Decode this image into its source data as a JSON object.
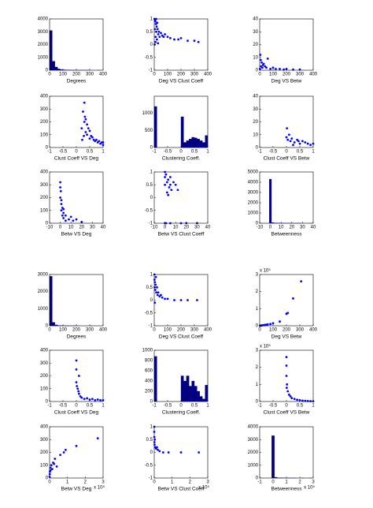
{
  "chart_data": [
    {
      "type": "histogram",
      "xlabel": "Degrees",
      "color": "#000080",
      "xlim": [
        0,
        400
      ],
      "xticks": [
        0,
        100,
        200,
        300,
        400
      ],
      "ylim": [
        0,
        4000
      ],
      "yticks": [
        0,
        1000,
        2000,
        3000,
        4000
      ],
      "bins": [
        0,
        20,
        40,
        60,
        80,
        100,
        120,
        140,
        160,
        180,
        200,
        220,
        240,
        260,
        280,
        300,
        320,
        340,
        360,
        380,
        400
      ],
      "values": [
        3100,
        700,
        250,
        100,
        50,
        30,
        20,
        10,
        5,
        5,
        3,
        2,
        2,
        1,
        1,
        0,
        0,
        0,
        1,
        0
      ]
    },
    {
      "type": "scatter",
      "xlabel": "Deg VS Clust Coeff",
      "color": "#0000ff",
      "xlim": [
        0,
        400
      ],
      "xticks": [
        0,
        100,
        200,
        300,
        400
      ],
      "ylim": [
        -1,
        1
      ],
      "yticks": [
        -1,
        -0.5,
        0,
        0.5,
        1
      ],
      "x": [
        2,
        3,
        5,
        8,
        10,
        12,
        15,
        18,
        20,
        25,
        30,
        35,
        40,
        50,
        60,
        70,
        80,
        100,
        120,
        150,
        180,
        200,
        250,
        300,
        330,
        6,
        9,
        14,
        22,
        28
      ],
      "values": [
        1,
        0,
        0.6,
        0.9,
        0.3,
        0.8,
        0.5,
        0.7,
        0.2,
        0.6,
        0.4,
        0.5,
        0.3,
        0.45,
        0.35,
        0.3,
        0.4,
        0.3,
        0.25,
        0.2,
        0.2,
        0.25,
        0.15,
        0.15,
        0.1,
        0.95,
        0.1,
        1,
        0.85,
        0.05
      ]
    },
    {
      "type": "scatter",
      "xlabel": "Deg VS Betw",
      "color": "#0000ff",
      "xlim": [
        0,
        400
      ],
      "xticks": [
        0,
        100,
        200,
        300,
        400
      ],
      "ylim": [
        0,
        40
      ],
      "yticks": [
        0,
        10,
        20,
        30,
        40
      ],
      "x": [
        2,
        5,
        8,
        10,
        15,
        20,
        25,
        30,
        40,
        50,
        60,
        80,
        100,
        120,
        150,
        180,
        200,
        250,
        300
      ],
      "values": [
        1,
        12,
        8,
        3,
        6,
        2,
        4,
        5,
        3,
        2,
        9,
        1,
        2,
        1,
        1,
        0.5,
        1,
        0.5,
        0.5
      ]
    },
    {
      "type": "scatter",
      "xlabel": "Clust Coeff VS Deg",
      "color": "#0000ff",
      "xlim": [
        -1,
        1
      ],
      "xticks": [
        -1,
        -0.5,
        0,
        0.5,
        1
      ],
      "ylim": [
        0,
        400
      ],
      "yticks": [
        0,
        100,
        200,
        300,
        400
      ],
      "x": [
        0.2,
        0.25,
        0.3,
        0.3,
        0.32,
        0.35,
        0.35,
        0.4,
        0.4,
        0.45,
        0.5,
        0.5,
        0.55,
        0.6,
        0.65,
        0.7,
        0.75,
        0.8,
        0.85,
        0.9,
        0.95,
        1,
        1,
        0.22,
        0.28
      ],
      "values": [
        150,
        280,
        350,
        200,
        240,
        220,
        120,
        180,
        100,
        150,
        130,
        70,
        90,
        80,
        60,
        50,
        60,
        40,
        50,
        30,
        40,
        20,
        40,
        60,
        90
      ]
    },
    {
      "type": "histogram",
      "xlabel": "Clustering Coeff.",
      "color": "#000080",
      "xlim": [
        -1,
        1
      ],
      "xticks": [
        -1,
        -0.5,
        0,
        0.5,
        1
      ],
      "ylim": [
        0,
        1500
      ],
      "yticks": [
        0,
        500,
        1000
      ],
      "bins": [
        -1,
        -0.9,
        -0.8,
        -0.7,
        -0.6,
        -0.5,
        -0.4,
        -0.3,
        -0.2,
        -0.1,
        0,
        0.1,
        0.2,
        0.3,
        0.4,
        0.5,
        0.6,
        0.7,
        0.8,
        0.9,
        1
      ],
      "values": [
        1200,
        0,
        0,
        0,
        0,
        0,
        0,
        0,
        0,
        0,
        900,
        150,
        200,
        250,
        300,
        280,
        250,
        200,
        150,
        350
      ]
    },
    {
      "type": "scatter",
      "xlabel": "Clust Coeff VS Betw",
      "color": "#0000ff",
      "xlim": [
        -1,
        1
      ],
      "xticks": [
        -1,
        -0.5,
        0,
        0.5,
        1
      ],
      "ylim": [
        0,
        40
      ],
      "yticks": [
        0,
        10,
        20,
        30,
        40
      ],
      "x": [
        0,
        0.05,
        0.1,
        0.15,
        0.2,
        0.3,
        0.4,
        0.5,
        0.6,
        0.7,
        0.8,
        0.9,
        1,
        0.02,
        0.25,
        0.45
      ],
      "values": [
        8,
        6,
        10,
        5,
        7,
        4,
        6,
        3,
        5,
        4,
        3,
        2,
        3,
        15,
        2,
        5
      ]
    },
    {
      "type": "scatter",
      "xlabel": "Betw VS Deg",
      "color": "#0000ff",
      "xlim": [
        -10,
        40
      ],
      "xticks": [
        -10,
        0,
        10,
        20,
        30,
        40
      ],
      "ylim": [
        0,
        400
      ],
      "yticks": [
        0,
        100,
        200,
        300,
        400
      ],
      "x": [
        0,
        0,
        0,
        0.5,
        1,
        1,
        2,
        2,
        3,
        3,
        5,
        5,
        8,
        10,
        12,
        15,
        20,
        3,
        1
      ],
      "values": [
        320,
        280,
        200,
        250,
        150,
        100,
        120,
        60,
        80,
        40,
        60,
        20,
        30,
        50,
        20,
        30,
        10,
        110,
        180
      ]
    },
    {
      "type": "scatter",
      "xlabel": "Betw VS Clust Coeff",
      "color": "#0000ff",
      "xlim": [
        -10,
        40
      ],
      "xticks": [
        -10,
        0,
        10,
        20,
        30,
        40
      ],
      "ylim": [
        -1,
        1
      ],
      "yticks": [
        -1,
        -0.5,
        0,
        0.5,
        1
      ],
      "x": [
        0,
        0,
        0,
        1,
        2,
        2,
        3,
        4,
        5,
        6,
        8,
        10,
        0,
        1,
        5,
        15,
        20,
        12,
        3,
        5,
        30
      ],
      "values": [
        1,
        0.8,
        0.5,
        0.9,
        0.6,
        0.2,
        0.7,
        0.4,
        0.5,
        0.3,
        0.6,
        0.5,
        -1,
        -1,
        -1,
        -1,
        -1,
        0.3,
        0.1,
        0.8,
        -1
      ]
    },
    {
      "type": "histogram",
      "xlabel": "Betweenness",
      "color": "#000080",
      "xlim": [
        -10,
        40
      ],
      "xticks": [
        -10,
        0,
        10,
        20,
        30,
        40
      ],
      "ylim": [
        0,
        5000
      ],
      "yticks": [
        0,
        1000,
        2000,
        3000,
        4000,
        5000
      ],
      "bins": [
        -1,
        1,
        3,
        5,
        7,
        9,
        11,
        13,
        15,
        17,
        19,
        21,
        23,
        25,
        27,
        29,
        31,
        33,
        35,
        37,
        39
      ],
      "values": [
        4300,
        60,
        30,
        20,
        10,
        8,
        5,
        4,
        3,
        2,
        2,
        1,
        1,
        1,
        1,
        0,
        0,
        0,
        0,
        1
      ]
    },
    {
      "type": "histogram",
      "xlabel": "Degrees",
      "color": "#000080",
      "xlim": [
        0,
        400
      ],
      "xticks": [
        0,
        100,
        200,
        300,
        400
      ],
      "ylim": [
        0,
        3000
      ],
      "yticks": [
        0,
        1000,
        2000,
        3000
      ],
      "bins": [
        0,
        20,
        40,
        60,
        80,
        100,
        120,
        140,
        160,
        180,
        200,
        220,
        240,
        260,
        280,
        300,
        320,
        340,
        360,
        380,
        400
      ],
      "values": [
        2900,
        200,
        50,
        20,
        10,
        5,
        3,
        2,
        1,
        1,
        1,
        0,
        0,
        0,
        0,
        1,
        0,
        0,
        0,
        0
      ]
    },
    {
      "type": "scatter",
      "xlabel": "Deg VS Clust Coeff",
      "color": "#0000ff",
      "xlim": [
        0,
        400
      ],
      "xticks": [
        0,
        100,
        200,
        300,
        400
      ],
      "ylim": [
        -1,
        1
      ],
      "yticks": [
        -1,
        -0.5,
        0,
        0.5,
        1
      ],
      "x": [
        1,
        2,
        3,
        5,
        8,
        10,
        15,
        20,
        25,
        30,
        40,
        50,
        60,
        80,
        100,
        150,
        200,
        250,
        320,
        5,
        12
      ],
      "values": [
        1,
        0.8,
        0.5,
        0.7,
        0.4,
        0.6,
        0.3,
        0.5,
        0.2,
        0.3,
        0.15,
        0.2,
        0.1,
        0.05,
        0.05,
        0,
        0,
        0,
        0,
        -0.1,
        0.9
      ]
    },
    {
      "type": "scatter",
      "xlabel": "Deg VS Betw",
      "color": "#0000ff",
      "xlim": [
        0,
        400
      ],
      "xticks": [
        0,
        100,
        200,
        300,
        400
      ],
      "ylim": [
        0,
        300000
      ],
      "yticks": [
        0,
        {
          "value": 100000,
          "label": "1"
        },
        {
          "value": 200000,
          "label": "2"
        },
        {
          "value": 300000,
          "label": "3"
        }
      ],
      "y_scale_label": "x 10⁵",
      "x": [
        2,
        5,
        10,
        15,
        20,
        30,
        40,
        50,
        60,
        80,
        100,
        150,
        200,
        210,
        250,
        310
      ],
      "values": [
        0,
        500,
        1000,
        2000,
        3000,
        4000,
        5000,
        6000,
        8000,
        10000,
        15000,
        25000,
        70000,
        75000,
        160000,
        260000
      ]
    },
    {
      "type": "scatter",
      "xlabel": "Clust Coeff VS Deg",
      "color": "#0000ff",
      "xlim": [
        -1,
        1
      ],
      "xticks": [
        -1,
        -0.5,
        0,
        0.5,
        1
      ],
      "ylim": [
        0,
        400
      ],
      "yticks": [
        0,
        100,
        200,
        300,
        400
      ],
      "x": [
        0,
        0,
        0,
        0.05,
        0.1,
        0.1,
        0.15,
        0.2,
        0.3,
        0.4,
        0.5,
        0.6,
        0.7,
        0.8,
        0.9,
        1,
        0.02,
        0.08
      ],
      "values": [
        320,
        250,
        150,
        100,
        200,
        60,
        40,
        30,
        20,
        25,
        15,
        20,
        10,
        15,
        10,
        10,
        120,
        80
      ]
    },
    {
      "type": "histogram",
      "xlabel": "Clustering Coeff.",
      "color": "#000080",
      "xlim": [
        -1,
        1
      ],
      "xticks": [
        -1,
        -0.5,
        0,
        0.5,
        1
      ],
      "ylim": [
        0,
        1000
      ],
      "yticks": [
        0,
        200,
        400,
        600,
        800,
        1000
      ],
      "bins": [
        -1,
        -0.9,
        -0.8,
        -0.7,
        -0.6,
        -0.5,
        -0.4,
        -0.3,
        -0.2,
        -0.1,
        0,
        0.1,
        0.2,
        0.3,
        0.4,
        0.5,
        0.6,
        0.7,
        0.8,
        0.9,
        1
      ],
      "values": [
        880,
        0,
        0,
        0,
        0,
        0,
        0,
        0,
        0,
        0,
        500,
        400,
        500,
        300,
        400,
        300,
        200,
        100,
        50,
        320
      ]
    },
    {
      "type": "scatter",
      "xlabel": "Clust Coeff VS Betw",
      "color": "#0000ff",
      "xlim": [
        -1,
        1
      ],
      "xticks": [
        -1,
        -0.5,
        0,
        0.5,
        1
      ],
      "ylim": [
        0,
        300000
      ],
      "yticks": [
        0,
        {
          "value": 100000,
          "label": "1"
        },
        {
          "value": 200000,
          "label": "2"
        },
        {
          "value": 300000,
          "label": "3"
        }
      ],
      "y_scale_label": "x 10⁵",
      "x": [
        0,
        0,
        0,
        0.02,
        0.05,
        0.1,
        0.15,
        0.2,
        0.3,
        0.4,
        0.5,
        0.6,
        0.7,
        0.8,
        0.9,
        1,
        0.01
      ],
      "values": [
        260000,
        210000,
        150000,
        100000,
        60000,
        40000,
        30000,
        20000,
        15000,
        10000,
        8000,
        5000,
        4000,
        3000,
        2000,
        1000,
        80000
      ]
    },
    {
      "type": "scatter",
      "xlabel": "Betw VS Deg",
      "color": "#0000ff",
      "xlim": [
        0,
        300000
      ],
      "xticks": [
        0,
        {
          "value": 100000,
          "label": "1"
        },
        {
          "value": 200000,
          "label": "2"
        },
        {
          "value": 300000,
          "label": "3"
        }
      ],
      "x_scale_label": "x 10⁵",
      "ylim": [
        0,
        400
      ],
      "yticks": [
        0,
        100,
        200,
        300,
        400
      ],
      "x": [
        0,
        1000,
        2000,
        5000,
        10000,
        15000,
        20000,
        30000,
        40000,
        60000,
        80000,
        90000,
        150000,
        270000,
        5000,
        25000
      ],
      "values": [
        10,
        30,
        50,
        80,
        100,
        70,
        120,
        150,
        90,
        180,
        200,
        220,
        250,
        310,
        60,
        110
      ]
    },
    {
      "type": "scatter",
      "xlabel": "Betw VS Clust Coeff",
      "color": "#0000ff",
      "xlim": [
        0,
        300000
      ],
      "xticks": [
        0,
        {
          "value": 100000,
          "label": "1"
        },
        {
          "value": 200000,
          "label": "2"
        },
        {
          "value": 300000,
          "label": "3"
        }
      ],
      "x_scale_label": "x 10⁵",
      "ylim": [
        -1,
        1
      ],
      "yticks": [
        -1,
        -0.5,
        0,
        0.5,
        1
      ],
      "x": [
        0,
        0,
        500,
        1000,
        2000,
        5000,
        10000,
        20000,
        30000,
        50000,
        80000,
        150000,
        250000,
        3000,
        15000
      ],
      "values": [
        1,
        0.8,
        0.6,
        0.4,
        0.3,
        0.2,
        0.15,
        0.1,
        0.05,
        0,
        0,
        0,
        0,
        0.5,
        0.2
      ]
    },
    {
      "type": "histogram",
      "xlabel": "Betweenness",
      "color": "#000080",
      "xlim": [
        -100000,
        300000
      ],
      "xticks": [
        {
          "value": -100000,
          "label": "-1"
        },
        0,
        {
          "value": 100000,
          "label": "1"
        },
        {
          "value": 200000,
          "label": "2"
        },
        {
          "value": 300000,
          "label": "3"
        }
      ],
      "x_scale_label": "x 10⁵",
      "ylim": [
        0,
        4000
      ],
      "yticks": [
        0,
        1000,
        2000,
        3000,
        4000
      ],
      "bins": [
        -10000,
        10000,
        30000,
        50000,
        70000,
        90000,
        110000,
        130000,
        150000,
        170000,
        190000,
        210000,
        230000,
        250000,
        270000,
        290000
      ],
      "values": [
        3300,
        60,
        20,
        10,
        5,
        3,
        2,
        1,
        1,
        0,
        0,
        1,
        0,
        0,
        1
      ]
    }
  ]
}
